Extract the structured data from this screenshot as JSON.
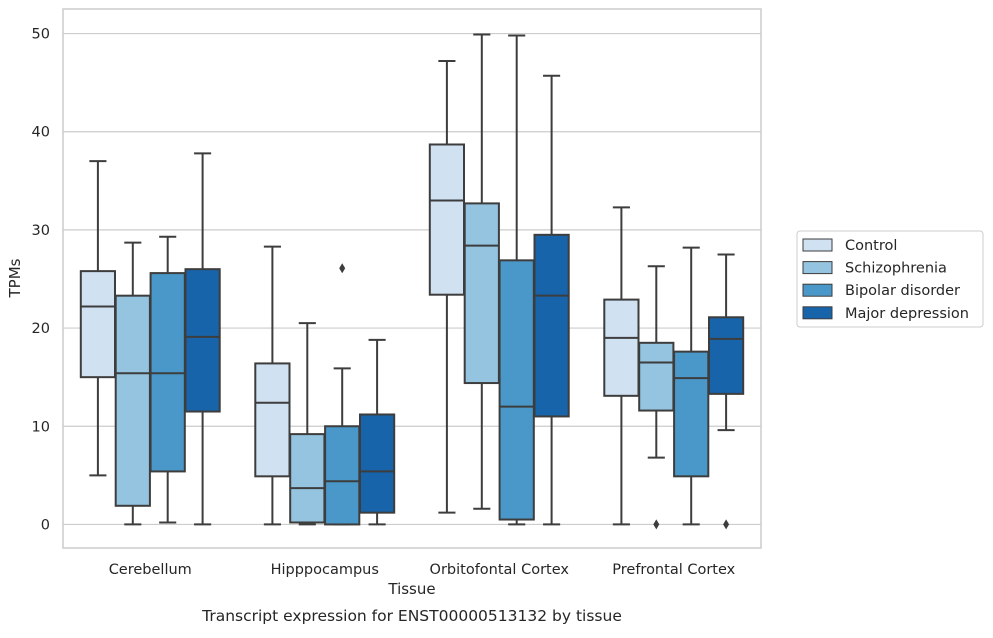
{
  "chart_data": {
    "type": "box",
    "title": "Transcript expression for ENST00000513132 by tissue",
    "xlabel": "Tissue",
    "ylabel": "TPMs",
    "ylim": [
      -2.4,
      52.5
    ],
    "yticks": [
      0,
      10,
      20,
      30,
      40,
      50
    ],
    "grid": "horizontal",
    "legend_position": "right",
    "categories": [
      "Cerebellum",
      "Hipppocampus",
      "Orbitofontal Cortex",
      "Prefrontal Cortex"
    ],
    "series": [
      {
        "name": "Control",
        "color": "#d0e1f2",
        "boxes": [
          {
            "whislo": 5.0,
            "q1": 15.0,
            "med": 22.2,
            "q3": 25.8,
            "whishi": 37.0,
            "fliers": []
          },
          {
            "whislo": 0.0,
            "q1": 4.9,
            "med": 12.4,
            "q3": 16.4,
            "whishi": 28.3,
            "fliers": []
          },
          {
            "whislo": 1.2,
            "q1": 23.4,
            "med": 33.0,
            "q3": 38.7,
            "whishi": 47.2,
            "fliers": []
          },
          {
            "whislo": 0.0,
            "q1": 13.1,
            "med": 19.0,
            "q3": 22.9,
            "whishi": 32.3,
            "fliers": []
          }
        ]
      },
      {
        "name": "Schizophrenia",
        "color": "#94c4df",
        "boxes": [
          {
            "whislo": 0.0,
            "q1": 1.9,
            "med": 15.4,
            "q3": 23.3,
            "whishi": 28.7,
            "fliers": []
          },
          {
            "whislo": 0.0,
            "q1": 0.2,
            "med": 3.7,
            "q3": 9.2,
            "whishi": 20.5,
            "fliers": []
          },
          {
            "whislo": 1.6,
            "q1": 14.4,
            "med": 28.4,
            "q3": 32.7,
            "whishi": 49.9,
            "fliers": []
          },
          {
            "whislo": 6.8,
            "q1": 11.6,
            "med": 16.5,
            "q3": 18.5,
            "whishi": 26.3,
            "fliers": [
              0.0
            ]
          }
        ]
      },
      {
        "name": "Bipolar disorder",
        "color": "#4a98c9",
        "boxes": [
          {
            "whislo": 0.2,
            "q1": 5.4,
            "med": 15.4,
            "q3": 25.6,
            "whishi": 29.3,
            "fliers": []
          },
          {
            "whislo": 0.0,
            "q1": 0.0,
            "med": 4.4,
            "q3": 10.0,
            "whishi": 15.9,
            "fliers": [
              26.1
            ]
          },
          {
            "whislo": 0.0,
            "q1": 0.5,
            "med": 12.0,
            "q3": 26.9,
            "whishi": 49.8,
            "fliers": []
          },
          {
            "whislo": 0.0,
            "q1": 4.9,
            "med": 14.9,
            "q3": 17.6,
            "whishi": 28.2,
            "fliers": []
          }
        ]
      },
      {
        "name": "Major depression",
        "color": "#1764ab",
        "boxes": [
          {
            "whislo": 0.0,
            "q1": 11.5,
            "med": 19.1,
            "q3": 26.0,
            "whishi": 37.8,
            "fliers": []
          },
          {
            "whislo": 0.0,
            "q1": 1.2,
            "med": 5.4,
            "q3": 11.2,
            "whishi": 18.8,
            "fliers": []
          },
          {
            "whislo": 0.0,
            "q1": 11.0,
            "med": 23.3,
            "q3": 29.5,
            "whishi": 45.7,
            "fliers": []
          },
          {
            "whislo": 9.6,
            "q1": 13.3,
            "med": 18.9,
            "q3": 21.1,
            "whishi": 27.5,
            "fliers": [
              0.0
            ]
          }
        ]
      }
    ]
  }
}
